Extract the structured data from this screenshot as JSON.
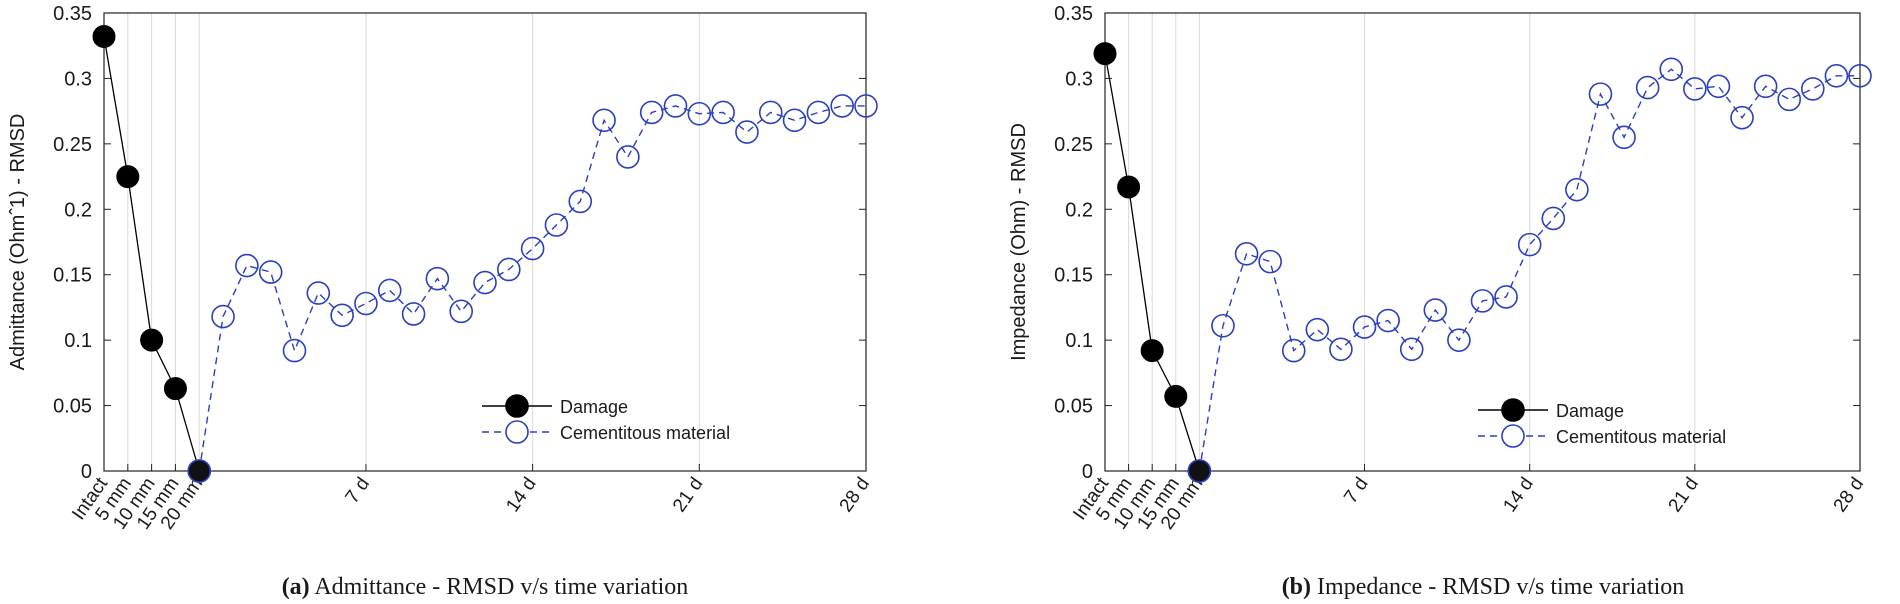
{
  "chart_data": [
    {
      "type": "line",
      "panel_id": "a",
      "ylabel": "Admittance (Ohmˆ1) - RMSD",
      "xlabel": "",
      "ylim": [
        0,
        0.35
      ],
      "y_ticks": [
        0,
        0.05,
        0.1,
        0.15,
        0.2,
        0.25,
        0.3,
        0.35
      ],
      "y_tick_labels": [
        "0",
        "0.05",
        "0.1",
        "0.15",
        "0.2",
        "0.25",
        "0.3",
        "0.35"
      ],
      "x_tick_labels": [
        "Intact",
        "5 mm",
        "10 mm",
        "15 mm",
        "20 mm",
        "7 d",
        "14 d",
        "21 d",
        "28 d"
      ],
      "x_tick_positions": [
        0,
        1,
        2,
        3,
        4,
        11,
        18,
        25,
        32
      ],
      "xlim": [
        0,
        32
      ],
      "grid": true,
      "legend_position": "bottom-right",
      "series": [
        {
          "name": "Damage",
          "style": "solid-filled",
          "color": "#000000",
          "x": [
            0,
            1,
            2,
            3,
            4
          ],
          "y": [
            0.332,
            0.225,
            0.1,
            0.063,
            0
          ]
        },
        {
          "name": "Cementitous material",
          "style": "dashed-open",
          "color": "#2a3fbf",
          "x": [
            4,
            5,
            6,
            7,
            8,
            9,
            10,
            11,
            12,
            13,
            14,
            15,
            16,
            17,
            18,
            19,
            20,
            21,
            22,
            23,
            24,
            25,
            26,
            27,
            28,
            29,
            30,
            31,
            32
          ],
          "y": [
            0,
            0.118,
            0.157,
            0.152,
            0.092,
            0.136,
            0.119,
            0.128,
            0.138,
            0.12,
            0.147,
            0.122,
            0.144,
            0.154,
            0.17,
            0.188,
            0.206,
            0.268,
            0.24,
            0.274,
            0.279,
            0.273,
            0.274,
            0.259,
            0.274,
            0.268,
            0.274,
            0.279,
            0.279
          ]
        }
      ],
      "caption": {
        "label": "(a)",
        "text": " Admittance - RMSD v/s time variation"
      }
    },
    {
      "type": "line",
      "panel_id": "b",
      "ylabel": "Impedance (Ohm) - RMSD",
      "xlabel": "",
      "ylim": [
        0,
        0.35
      ],
      "y_ticks": [
        0,
        0.05,
        0.1,
        0.15,
        0.2,
        0.25,
        0.3,
        0.35
      ],
      "y_tick_labels": [
        "0",
        "0.05",
        "0.1",
        "0.15",
        "0.2",
        "0.25",
        "0.3",
        "0.35"
      ],
      "x_tick_labels": [
        "Intact",
        "5 mm",
        "10 mm",
        "15 mm",
        "20 mm",
        "7 d",
        "14 d",
        "21 d",
        "28 d"
      ],
      "x_tick_positions": [
        0,
        1,
        2,
        3,
        4,
        11,
        18,
        25,
        32
      ],
      "xlim": [
        0,
        32
      ],
      "grid": true,
      "legend_position": "bottom-right",
      "series": [
        {
          "name": "Damage",
          "style": "solid-filled",
          "color": "#000000",
          "x": [
            0,
            1,
            2,
            3,
            4
          ],
          "y": [
            0.319,
            0.217,
            0.092,
            0.057,
            0
          ]
        },
        {
          "name": "Cementitous material",
          "style": "dashed-open",
          "color": "#2a3fbf",
          "x": [
            4,
            5,
            6,
            7,
            8,
            9,
            10,
            11,
            12,
            13,
            14,
            15,
            16,
            17,
            18,
            19,
            20,
            21,
            22,
            23,
            24,
            25,
            26,
            27,
            28,
            29,
            30,
            31,
            32
          ],
          "y": [
            0,
            0.111,
            0.166,
            0.16,
            0.092,
            0.108,
            0.093,
            0.11,
            0.115,
            0.093,
            0.123,
            0.1,
            0.13,
            0.133,
            0.173,
            0.193,
            0.215,
            0.288,
            0.255,
            0.293,
            0.307,
            0.292,
            0.294,
            0.27,
            0.294,
            0.284,
            0.292,
            0.302,
            0.302
          ]
        }
      ],
      "caption": {
        "label": "(b)",
        "text": " Impedance - RMSD v/s time variation"
      }
    }
  ]
}
